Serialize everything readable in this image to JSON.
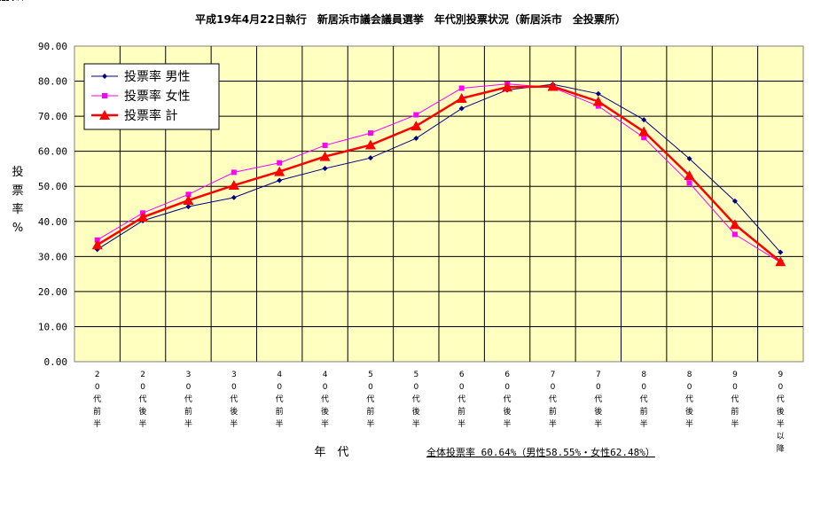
{
  "chart_data": {
    "type": "line",
    "title": "平成19年4月22日執行　新居浜市議会議員選挙　年代別投票状況（新居浜市　全投票所）",
    "xlabel": "年　代",
    "ylabel": "投票率%",
    "ylim": [
      0,
      90
    ],
    "ytick_labels": [
      "0.00",
      "10.00",
      "20.00",
      "30.00",
      "40.00",
      "50.00",
      "60.00",
      "70.00",
      "80.00",
      "90.00"
    ],
    "grid": true,
    "legend_position": "top-left",
    "categories": [
      "20代前半",
      "20代後半",
      "30代前半",
      "30代後半",
      "40代前半",
      "40代後半",
      "50代前半",
      "50代後半",
      "60代前半",
      "60代後半",
      "70代前半",
      "70代後半",
      "80代前半",
      "80代後半",
      "90代前半",
      "90代後半以降"
    ],
    "series": [
      {
        "name": "投票率 男性",
        "color": "#000080",
        "marker": "diamond",
        "values": [
          32.0,
          40.2,
          44.2,
          46.8,
          51.7,
          55.1,
          58.1,
          63.7,
          72.2,
          77.5,
          79.1,
          76.4,
          69.0,
          57.9,
          45.8,
          31.2
        ]
      },
      {
        "name": "投票率 女性",
        "color": "#FF00FF",
        "marker": "square",
        "values": [
          34.7,
          42.4,
          47.7,
          54.0,
          56.7,
          61.7,
          65.2,
          70.4,
          78.0,
          79.2,
          78.2,
          72.9,
          63.9,
          51.0,
          36.3,
          28.3
        ]
      },
      {
        "name": "投票率 計",
        "color": "#FF0000",
        "marker": "triangle",
        "values": [
          33.3,
          41.2,
          46.0,
          50.3,
          54.2,
          58.5,
          61.8,
          67.2,
          75.1,
          78.3,
          78.5,
          74.2,
          65.6,
          53.1,
          39.1,
          28.5
        ]
      }
    ],
    "footnote": "全体投票率 60.64%（男性58.55%・女性62.48%）"
  }
}
